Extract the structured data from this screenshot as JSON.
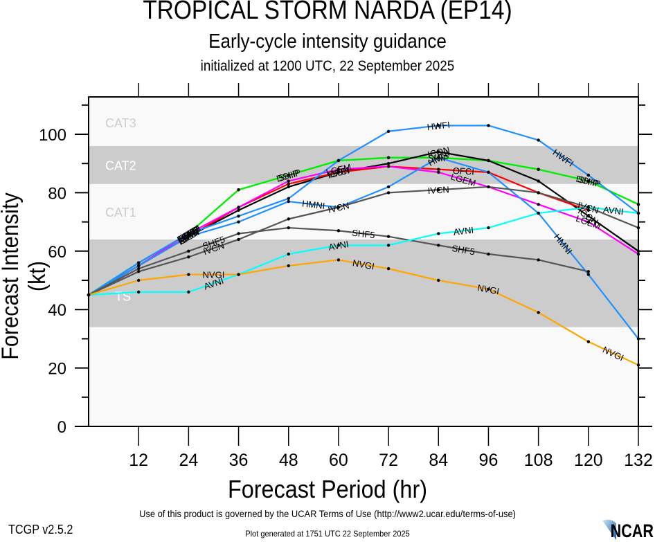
{
  "header": {
    "title": "TROPICAL STORM NARDA (EP14)",
    "subtitle": "Early-cycle intensity guidance",
    "initialized": "initialized at 1200 UTC, 22 September 2025"
  },
  "footer": {
    "terms": "Use of this product is governed by the UCAR Terms of Use (http://www2.ucar.edu/terms-of-use)",
    "version": "TCGP v2.5.2",
    "generated": "Plot generated at 1751 UTC   22 September 2025",
    "logo_text": "NCAR"
  },
  "chart_data": {
    "type": "line",
    "title": "TROPICAL STORM NARDA (EP14)",
    "subtitle": "Early-cycle intensity guidance",
    "xlabel": "Forecast Period (hr)",
    "ylabel": "Forecast Intensity (kt)",
    "xlim": [
      0,
      132
    ],
    "ylim": [
      0,
      112
    ],
    "xticks": [
      12,
      24,
      36,
      48,
      60,
      72,
      84,
      96,
      108,
      120,
      132
    ],
    "yticks": [
      0,
      20,
      40,
      60,
      80,
      100
    ],
    "bands": [
      {
        "label": "TS",
        "from": 34,
        "to": 64,
        "color": "#cccccc",
        "label_color": "#ffffff"
      },
      {
        "label": "CAT1",
        "from": 64,
        "to": 83,
        "color": "#f9f9f9",
        "label_color": "#cccccc"
      },
      {
        "label": "CAT2",
        "from": 83,
        "to": 96,
        "color": "#cccccc",
        "label_color": "#ffffff"
      },
      {
        "label": "CAT3",
        "from": 96,
        "to": 112,
        "color": "#f9f9f9",
        "label_color": "#cccccc"
      }
    ],
    "below_band_color": "#f9f9f9",
    "series": [
      {
        "name": "DSHP",
        "color": "#00ee00",
        "x": [
          0,
          12,
          24,
          36,
          48,
          60,
          72,
          84,
          96,
          108,
          120,
          132
        ],
        "values": [
          45,
          56,
          66,
          81,
          86,
          91,
          92,
          92,
          91,
          88,
          84,
          76
        ],
        "labels_at": [
          24,
          48,
          120
        ]
      },
      {
        "name": "SHIP",
        "color": "#00ee00",
        "x": [
          0,
          12,
          24,
          36,
          48,
          60,
          72,
          84,
          96,
          108,
          120,
          132
        ],
        "values": [
          45,
          56,
          66,
          81,
          86,
          91,
          92,
          92,
          91,
          88,
          84,
          76
        ],
        "labels_at": [
          24,
          48,
          84,
          120
        ]
      },
      {
        "name": "ICON",
        "color": "#000000",
        "x": [
          0,
          12,
          24,
          36,
          48,
          60,
          72,
          84,
          96,
          108,
          120,
          132
        ],
        "values": [
          45,
          55,
          65,
          74,
          82,
          87,
          90,
          94,
          91,
          84,
          72,
          60
        ],
        "labels_at": [
          24,
          60,
          84,
          120
        ]
      },
      {
        "name": "OFCI",
        "color": "#ff0000",
        "x": [
          0,
          12,
          24,
          36,
          48,
          60,
          72,
          84,
          96,
          108,
          120
        ],
        "values": [
          45,
          55,
          65,
          75,
          83,
          87,
          89,
          88,
          87,
          80,
          74
        ],
        "labels_at": [
          24,
          60,
          90
        ]
      },
      {
        "name": "LGEM",
        "color": "#ff00ff",
        "x": [
          0,
          12,
          24,
          36,
          48,
          60,
          72,
          84,
          96,
          108,
          120,
          132
        ],
        "values": [
          45,
          55,
          66,
          75,
          84,
          88,
          89,
          87,
          82,
          76,
          70,
          59
        ],
        "labels_at": [
          24,
          60,
          90,
          120
        ]
      },
      {
        "name": "HWFI",
        "color": "#1e90ff",
        "x": [
          0,
          12,
          24,
          36,
          48,
          60,
          72,
          84,
          96,
          108,
          120,
          132
        ],
        "values": [
          45,
          56,
          66,
          72,
          78,
          91,
          101,
          103,
          103,
          98,
          86,
          73
        ],
        "labels_at": [
          24,
          84,
          114
        ]
      },
      {
        "name": "HMNI",
        "color": "#1e90ff",
        "x": [
          0,
          12,
          24,
          36,
          48,
          60,
          72,
          84,
          96,
          108,
          120,
          132
        ],
        "values": [
          45,
          55,
          65,
          70,
          77,
          75,
          82,
          92,
          87,
          73,
          52,
          30
        ],
        "labels_at": [
          24,
          54,
          84,
          114
        ]
      },
      {
        "name": "IVCN",
        "color": "#555555",
        "x": [
          0,
          12,
          24,
          36,
          48,
          60,
          72,
          84,
          96,
          108,
          120,
          132
        ],
        "values": [
          45,
          53,
          58,
          64,
          71,
          75,
          80,
          81,
          82,
          80,
          75,
          68
        ],
        "labels_at": [
          30,
          60,
          84,
          120
        ]
      },
      {
        "name": "SHF5",
        "color": "#555555",
        "x": [
          0,
          12,
          24,
          36,
          48,
          60,
          72,
          84,
          96,
          108,
          120
        ],
        "values": [
          45,
          54,
          60,
          66,
          68,
          67,
          65,
          62,
          59,
          57,
          53
        ],
        "labels_at": [
          30,
          66,
          90
        ]
      },
      {
        "name": "AVNI",
        "color": "#00ffff",
        "x": [
          0,
          12,
          24,
          36,
          48,
          60,
          72,
          84,
          96,
          108,
          120,
          132
        ],
        "values": [
          45,
          46,
          46,
          52,
          59,
          62,
          62,
          66,
          68,
          73,
          75,
          73
        ],
        "labels_at": [
          30,
          60,
          90,
          126
        ]
      },
      {
        "name": "NVGI",
        "color": "#ffa500",
        "x": [
          0,
          12,
          24,
          36,
          48,
          60,
          72,
          84,
          96,
          108,
          120,
          132
        ],
        "values": [
          45,
          50,
          52,
          52,
          55,
          57,
          54,
          50,
          47,
          39,
          29,
          21
        ],
        "labels_at": [
          30,
          66,
          96,
          126
        ]
      }
    ]
  }
}
